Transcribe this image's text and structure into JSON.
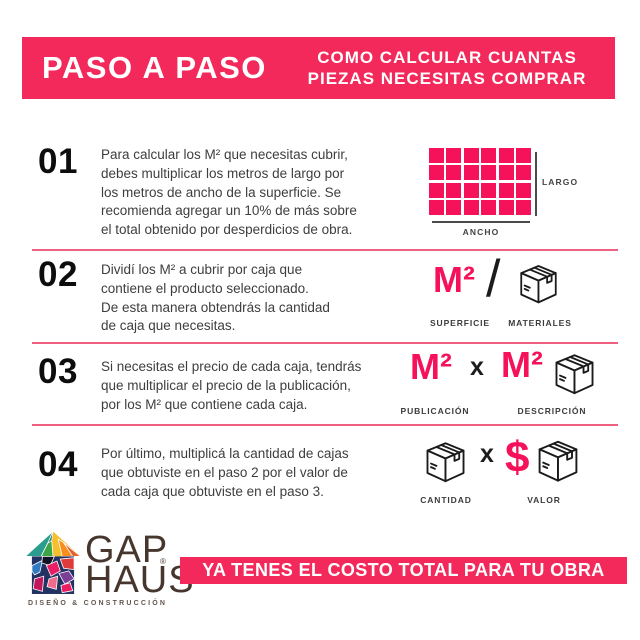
{
  "header": {
    "title": "PASO A PASO",
    "subtitle_line1": "COMO CALCULAR CUANTAS",
    "subtitle_line2": "PIEZAS NECESITAS COMPRAR"
  },
  "steps": [
    {
      "number": "01",
      "lines": [
        "Para calcular los M² que necesitas cubrir,",
        "debes multiplicar los metros de largo por",
        "los metros de ancho de la superficie. Se",
        "recomienda agregar un 10% de más sobre",
        "el total obtenido por desperdicios de obra."
      ],
      "diagram": {
        "rows": 4,
        "cols": 6,
        "largo_label": "LARGO",
        "ancho_label": "ANCHO"
      }
    },
    {
      "number": "02",
      "lines": [
        "Dividí los M² a cubrir por caja que",
        "contiene el producto seleccionado.",
        "De esta manera obtendrás la cantidad",
        "de caja que necesitas."
      ],
      "formula": {
        "left": "M²",
        "operator": "/",
        "left_label": "SUPERFICIE",
        "right_label": "MATERIALES"
      }
    },
    {
      "number": "03",
      "lines": [
        "Si necesitas el precio de cada caja, tendrás",
        "que multiplicar el precio de la publicación,",
        "por los M² que contiene cada caja."
      ],
      "formula": {
        "left": "M²",
        "operator": "x",
        "right": "M²",
        "left_label": "PUBLICACIÓN",
        "right_label": "DESCRIPCIÓN"
      }
    },
    {
      "number": "04",
      "lines": [
        "Por último, multiplicá la cantidad de cajas",
        "que obtuviste en el paso 2 por el valor de",
        "cada caja que obtuviste en el paso 3."
      ],
      "formula": {
        "operator": "x",
        "currency": "$",
        "left_label": "CANTIDAD",
        "right_label": "VALOR"
      }
    }
  ],
  "footer": {
    "brand_name_line1": "GAP",
    "brand_name_line2": "HAUS",
    "registered_mark": "®",
    "brand_tagline": "DISEÑO & CONSTRUCCIÓN",
    "banner": "YA TENES EL COSTO TOTAL PARA TU OBRA"
  },
  "colors": {
    "band_pink": "#F2295A",
    "bright_pink": "#F6125A",
    "divider_pink": "#EF5F80",
    "body_text": "#3E3E3E",
    "number_black": "#0D0D0D",
    "brand_brown": "#46362E"
  }
}
